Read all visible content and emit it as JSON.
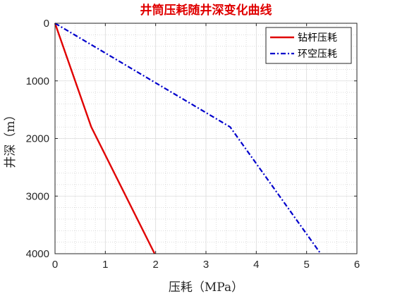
{
  "chart_data": {
    "type": "line",
    "title": "井筒压耗随井深变化曲线",
    "xlabel": "压耗（MPa）",
    "ylabel": "井深（m）",
    "xlim": [
      0,
      6
    ],
    "ylim": [
      0,
      4000
    ],
    "y_reversed": true,
    "xticks": [
      0,
      1,
      2,
      3,
      4,
      5,
      6
    ],
    "yticks": [
      0,
      1000,
      2000,
      3000,
      4000
    ],
    "grid": true,
    "minor_grid": true,
    "legend_position": "top-right",
    "series": [
      {
        "name": "钻杆压耗",
        "color": "#e00000",
        "style": "solid",
        "points": [
          [
            0,
            0
          ],
          [
            0.72,
            1800
          ],
          [
            1.98,
            4000
          ]
        ]
      },
      {
        "name": "环空压耗",
        "color": "#0000cc",
        "style": "dash-dot",
        "points": [
          [
            0,
            0
          ],
          [
            3.48,
            1800
          ],
          [
            5.28,
            4000
          ]
        ]
      }
    ]
  }
}
